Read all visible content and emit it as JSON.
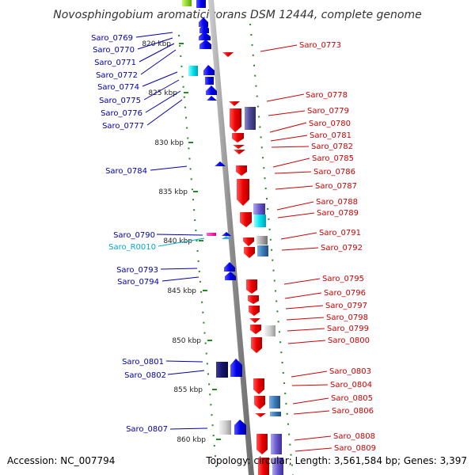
{
  "title": "Novosphingobium aromaticivorans DSM 12444, complete genome",
  "footer": {
    "accession": "Accession: NC_007794",
    "stats": "Topology: circular; Length: 3,561,584 bp; Genes: 3,397"
  },
  "colors": {
    "forward_strand": "#0000ee",
    "reverse_strand": "#ee0000",
    "rna": "#00bbee",
    "backbone": "#999999",
    "tick": "#228b22"
  },
  "kbp_ticks": [
    {
      "label": "820 kbp"
    },
    {
      "label": "825 kbp"
    },
    {
      "label": "830 kbp"
    },
    {
      "label": "835 kbp"
    },
    {
      "label": "840 kbp"
    },
    {
      "label": "845 kbp"
    },
    {
      "label": "850 kbp"
    },
    {
      "label": "855 kbp"
    },
    {
      "label": "860 kbp"
    }
  ],
  "genes_left": [
    {
      "label": "Saro_0769",
      "color": "#0000aa"
    },
    {
      "label": "Saro_0770",
      "color": "#0000aa"
    },
    {
      "label": "Saro_0771",
      "color": "#0000aa"
    },
    {
      "label": "Saro_0772",
      "color": "#0000aa"
    },
    {
      "label": "Saro_0774",
      "color": "#0000aa"
    },
    {
      "label": "Saro_0775",
      "color": "#0000aa"
    },
    {
      "label": "Saro_0776",
      "color": "#0000aa"
    },
    {
      "label": "Saro_0777",
      "color": "#0000aa"
    },
    {
      "label": "Saro_0784",
      "color": "#0000aa"
    },
    {
      "label": "Saro_0790",
      "color": "#0000aa"
    },
    {
      "label": "Saro_R0010",
      "color": "#00aacc"
    },
    {
      "label": "Saro_0793",
      "color": "#0000aa"
    },
    {
      "label": "Saro_0794",
      "color": "#0000aa"
    },
    {
      "label": "Saro_0801",
      "color": "#0000aa"
    },
    {
      "label": "Saro_0802",
      "color": "#0000aa"
    },
    {
      "label": "Saro_0807",
      "color": "#0000aa"
    }
  ],
  "genes_right": [
    {
      "label": "Saro_0773"
    },
    {
      "label": "Saro_0778"
    },
    {
      "label": "Saro_0779"
    },
    {
      "label": "Saro_0780"
    },
    {
      "label": "Saro_0781"
    },
    {
      "label": "Saro_0782"
    },
    {
      "label": "Saro_0785"
    },
    {
      "label": "Saro_0786"
    },
    {
      "label": "Saro_0787"
    },
    {
      "label": "Saro_0788"
    },
    {
      "label": "Saro_0789"
    },
    {
      "label": "Saro_0791"
    },
    {
      "label": "Saro_0792"
    },
    {
      "label": "Saro_0795"
    },
    {
      "label": "Saro_0796"
    },
    {
      "label": "Saro_0797"
    },
    {
      "label": "Saro_0798"
    },
    {
      "label": "Saro_0799"
    },
    {
      "label": "Saro_0800"
    },
    {
      "label": "Saro_0803"
    },
    {
      "label": "Saro_0804"
    },
    {
      "label": "Saro_0805"
    },
    {
      "label": "Saro_0806"
    },
    {
      "label": "Saro_0808"
    },
    {
      "label": "Saro_0809"
    }
  ]
}
